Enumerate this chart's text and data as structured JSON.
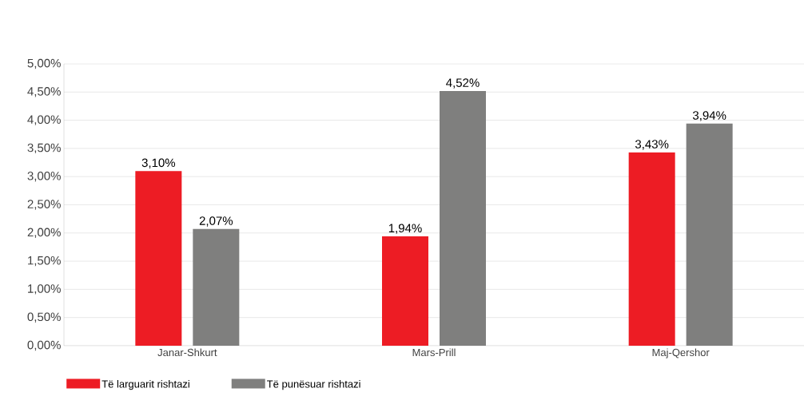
{
  "chart_data": {
    "type": "bar",
    "categories": [
      "Janar-Shkurt",
      "Mars-Prill",
      "Maj-Qershor"
    ],
    "series": [
      {
        "name": "Të larguarit rishtazi",
        "color": "#ed1c24",
        "values": [
          3.1,
          1.94,
          3.43
        ],
        "value_labels": [
          "3,10%",
          "1,94%",
          "3,43%"
        ]
      },
      {
        "name": "Të punësuar rishtazi",
        "color": "#7f7f7e",
        "values": [
          2.07,
          4.52,
          3.94
        ],
        "value_labels": [
          "2,07%",
          "4,52%",
          "3,94%"
        ]
      }
    ],
    "ylim": [
      0,
      5
    ],
    "yticks": [
      {
        "value": 0,
        "label": "0,00%"
      },
      {
        "value": 0.5,
        "label": "0,50%"
      },
      {
        "value": 1,
        "label": "1,00%"
      },
      {
        "value": 1.5,
        "label": "1,50%"
      },
      {
        "value": 2,
        "label": "2,00%"
      },
      {
        "value": 2.5,
        "label": "2,50%"
      },
      {
        "value": 3,
        "label": "3,00%"
      },
      {
        "value": 3.5,
        "label": "3,50%"
      },
      {
        "value": 4,
        "label": "4,00%"
      },
      {
        "value": 4.5,
        "label": "4,50%"
      },
      {
        "value": 5,
        "label": "5,00%"
      }
    ],
    "grid": "y",
    "legend": "bottom left"
  }
}
